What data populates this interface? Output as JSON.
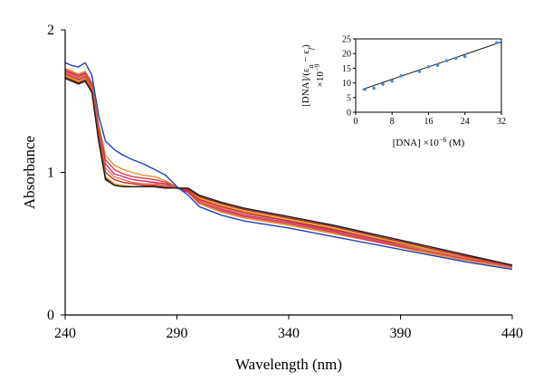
{
  "chart_data": [
    {
      "type": "line",
      "title": "",
      "xlabel": "Wavelength (nm)",
      "ylabel": "Absorbance",
      "xlim": [
        240,
        440
      ],
      "ylim": [
        0,
        2
      ],
      "xticks": [
        240,
        290,
        340,
        390,
        440
      ],
      "yticks": [
        0,
        1,
        2
      ],
      "grid": false,
      "legend": "none",
      "x": [
        240,
        243,
        246,
        249,
        252,
        255,
        258,
        262,
        266,
        270,
        275,
        280,
        285,
        290,
        295,
        300,
        310,
        320,
        340,
        360,
        380,
        400,
        420,
        440
      ],
      "series": [
        {
          "color": "#1f3fbf",
          "values": [
            1.77,
            1.75,
            1.74,
            1.77,
            1.68,
            1.4,
            1.22,
            1.16,
            1.12,
            1.09,
            1.06,
            1.02,
            0.98,
            0.9,
            0.84,
            0.76,
            0.7,
            0.66,
            0.61,
            0.55,
            0.49,
            0.43,
            0.37,
            0.32
          ]
        },
        {
          "color": "#e0902a",
          "values": [
            1.73,
            1.71,
            1.69,
            1.71,
            1.63,
            1.34,
            1.12,
            1.05,
            1.02,
            1.0,
            0.98,
            0.97,
            0.94,
            0.9,
            0.86,
            0.78,
            0.72,
            0.68,
            0.63,
            0.57,
            0.51,
            0.44,
            0.38,
            0.33
          ]
        },
        {
          "color": "#d93a3a",
          "values": [
            1.72,
            1.7,
            1.68,
            1.7,
            1.62,
            1.32,
            1.09,
            1.02,
            0.99,
            0.97,
            0.96,
            0.95,
            0.93,
            0.89,
            0.86,
            0.79,
            0.73,
            0.69,
            0.64,
            0.58,
            0.51,
            0.45,
            0.39,
            0.34
          ]
        },
        {
          "color": "#cc3377",
          "values": [
            1.71,
            1.69,
            1.67,
            1.69,
            1.61,
            1.3,
            1.06,
            0.99,
            0.97,
            0.95,
            0.94,
            0.93,
            0.92,
            0.89,
            0.86,
            0.8,
            0.74,
            0.7,
            0.65,
            0.59,
            0.52,
            0.46,
            0.4,
            0.34
          ]
        },
        {
          "color": "#e07050",
          "values": [
            1.7,
            1.68,
            1.66,
            1.68,
            1.6,
            1.28,
            1.03,
            0.97,
            0.95,
            0.93,
            0.92,
            0.92,
            0.91,
            0.89,
            0.87,
            0.8,
            0.75,
            0.71,
            0.66,
            0.6,
            0.53,
            0.46,
            0.4,
            0.35
          ]
        },
        {
          "color": "#c62a2a",
          "values": [
            1.69,
            1.67,
            1.65,
            1.67,
            1.59,
            1.26,
            1.0,
            0.95,
            0.93,
            0.92,
            0.91,
            0.91,
            0.9,
            0.89,
            0.87,
            0.81,
            0.76,
            0.72,
            0.66,
            0.6,
            0.53,
            0.47,
            0.41,
            0.35
          ]
        },
        {
          "color": "#d4b020",
          "values": [
            1.68,
            1.66,
            1.64,
            1.66,
            1.58,
            1.24,
            0.97,
            0.92,
            0.91,
            0.9,
            0.9,
            0.9,
            0.89,
            0.89,
            0.88,
            0.82,
            0.77,
            0.73,
            0.67,
            0.61,
            0.54,
            0.47,
            0.41,
            0.35
          ]
        },
        {
          "color": "#b02020",
          "values": [
            1.67,
            1.65,
            1.63,
            1.65,
            1.57,
            1.23,
            0.96,
            0.91,
            0.9,
            0.9,
            0.9,
            0.9,
            0.89,
            0.89,
            0.88,
            0.83,
            0.78,
            0.74,
            0.68,
            0.62,
            0.55,
            0.48,
            0.41,
            0.35
          ]
        },
        {
          "color": "#1a1a1a",
          "values": [
            1.66,
            1.64,
            1.62,
            1.64,
            1.56,
            1.22,
            0.95,
            0.91,
            0.9,
            0.9,
            0.9,
            0.9,
            0.89,
            0.89,
            0.89,
            0.84,
            0.79,
            0.75,
            0.69,
            0.63,
            0.56,
            0.49,
            0.42,
            0.35
          ]
        }
      ]
    },
    {
      "type": "scatter",
      "title": "",
      "xlabel": "[DNA] ×10",
      "xlabel_exp": "−6",
      "xlabel_unit": " (M)",
      "ylabel_line1": "[DNA]/(ε",
      "ylabel_sub1": "a",
      "ylabel_mid": " − ε",
      "ylabel_sub2": "f",
      "ylabel_end": ")",
      "ylabel_line2": "×10",
      "ylabel_exp": "−9",
      "xlim": [
        0,
        32
      ],
      "ylim": [
        0,
        25
      ],
      "xticks": [
        0,
        8,
        16,
        24,
        32
      ],
      "xtick_labels": [
        "0",
        "8",
        "16",
        "24",
        "32"
      ],
      "yticks": [
        0,
        5,
        10,
        15,
        20,
        25
      ],
      "point_color": "#4a90d9",
      "fit_color": "#1a1a1a",
      "x": [
        2,
        4,
        6,
        8,
        10,
        14,
        16,
        18,
        20,
        22,
        24,
        31
      ],
      "y": [
        7.8,
        8.2,
        9.5,
        10.6,
        12.4,
        13.9,
        15.5,
        16.0,
        17.6,
        18.4,
        19.0,
        23.7
      ],
      "fit": {
        "slope": 0.53,
        "intercept": 7.0
      }
    }
  ]
}
